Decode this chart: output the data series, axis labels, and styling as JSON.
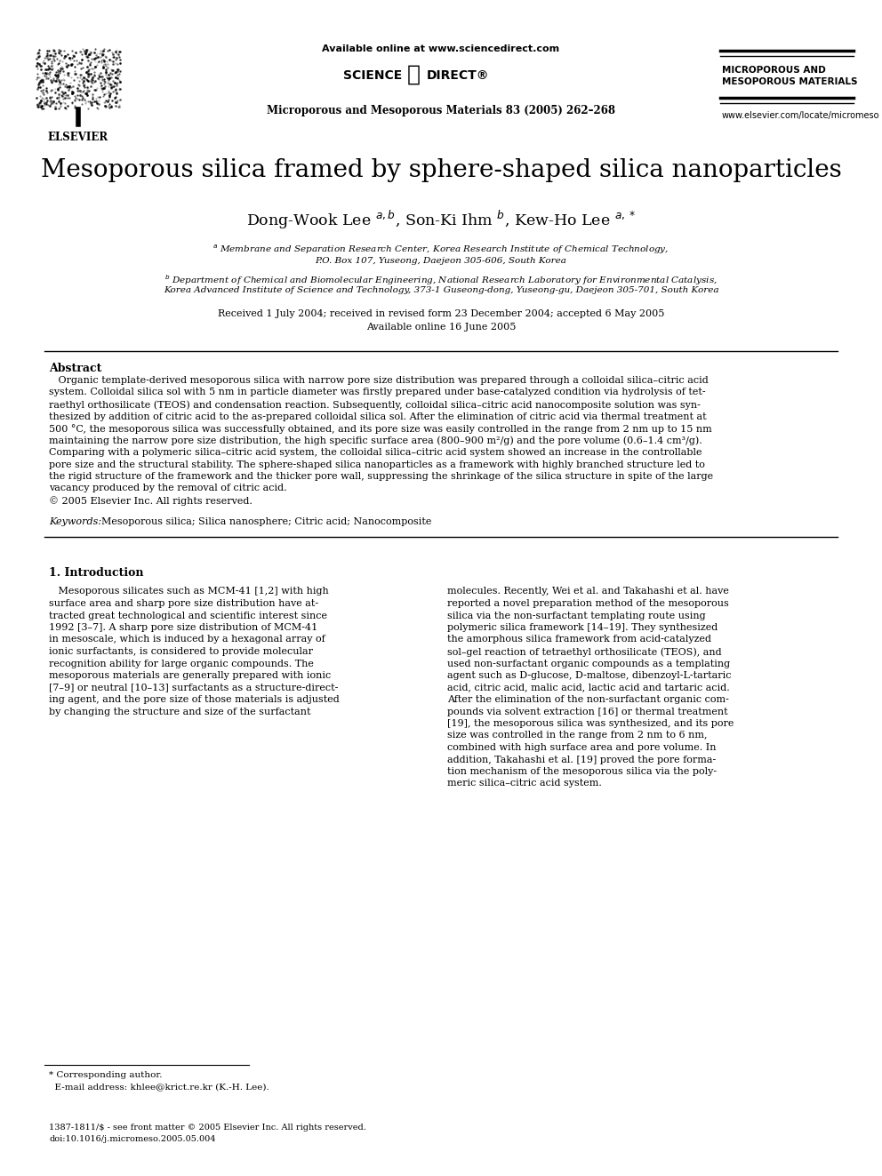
{
  "bg_color": "#ffffff",
  "page_width": 9.92,
  "page_height": 13.23,
  "header": {
    "available_online": "Available online at www.sciencedirect.com",
    "journal_name_center": "Microporous and Mesoporous Materials 83 (2005) 262–268",
    "journal_name_right_line1": "MICROPOROUS AND",
    "journal_name_right_line2": "MESOPOROUS MATERIALS",
    "website": "www.elsevier.com/locate/micromeso"
  },
  "title": "Mesoporous silica framed by sphere-shaped silica nanoparticles",
  "authors_display": "Dong-Wook Lee $^{a,b}$, Son-Ki Ihm $^{b}$, Kew-Ho Lee $^{a,*}$",
  "affil_a_line1": "$^{a}$ Membrane and Separation Research Center, Korea Research Institute of Chemical Technology,",
  "affil_a_line2": "P.O. Box 107, Yuseong, Daejeon 305-606, South Korea",
  "affil_b_line1": "$^{b}$ Department of Chemical and Biomolecular Engineering, National Research Laboratory for Environmental Catalysis,",
  "affil_b_line2": "Korea Advanced Institute of Science and Technology, 373-1 Guseong-dong, Yuseong-gu, Daejeon 305-701, South Korea",
  "received_line1": "Received 1 July 2004; received in revised form 23 December 2004; accepted 6 May 2005",
  "received_line2": "Available online 16 June 2005",
  "abstract_heading": "Abstract",
  "abstract_line1": "   Organic template-derived mesoporous silica with narrow pore size distribution was prepared through a colloidal silica–citric acid",
  "abstract_line2": "system. Colloidal silica sol with 5 nm in particle diameter was firstly prepared under base-catalyzed condition via hydrolysis of tet-",
  "abstract_line3": "raethyl orthosilicate (TEOS) and condensation reaction. Subsequently, colloidal silica–citric acid nanocomposite solution was syn-",
  "abstract_line4": "thesized by addition of citric acid to the as-prepared colloidal silica sol. After the elimination of citric acid via thermal treatment at",
  "abstract_line5": "500 °C, the mesoporous silica was successfully obtained, and its pore size was easily controlled in the range from 2 nm up to 15 nm",
  "abstract_line6": "maintaining the narrow pore size distribution, the high specific surface area (800–900 m²/g) and the pore volume (0.6–1.4 cm³/g).",
  "abstract_line7": "Comparing with a polymeric silica–citric acid system, the colloidal silica–citric acid system showed an increase in the controllable",
  "abstract_line8": "pore size and the structural stability. The sphere-shaped silica nanoparticles as a framework with highly branched structure led to",
  "abstract_line9": "the rigid structure of the framework and the thicker pore wall, suppressing the shrinkage of the silica structure in spite of the large",
  "abstract_line10": "vacancy produced by the removal of citric acid.",
  "abstract_line11": "© 2005 Elsevier Inc. All rights reserved.",
  "keywords_label": "Keywords:",
  "keywords_text": "  Mesoporous silica; Silica nanosphere; Citric acid; Nanocomposite",
  "section1_heading": "1. Introduction",
  "col1_lines": [
    "   Mesoporous silicates such as MCM-41 [1,2] with high",
    "surface area and sharp pore size distribution have at-",
    "tracted great technological and scientific interest since",
    "1992 [3–7]. A sharp pore size distribution of MCM-41",
    "in mesoscale, which is induced by a hexagonal array of",
    "ionic surfactants, is considered to provide molecular",
    "recognition ability for large organic compounds. The",
    "mesoporous materials are generally prepared with ionic",
    "[7–9] or neutral [10–13] surfactants as a structure-direct-",
    "ing agent, and the pore size of those materials is adjusted",
    "by changing the structure and size of the surfactant"
  ],
  "col2_lines": [
    "molecules. Recently, Wei et al. and Takahashi et al. have",
    "reported a novel preparation method of the mesoporous",
    "silica via the non-surfactant templating route using",
    "polymeric silica framework [14–19]. They synthesized",
    "the amorphous silica framework from acid-catalyzed",
    "sol–gel reaction of tetraethyl orthosilicate (TEOS), and",
    "used non-surfactant organic compounds as a templating",
    "agent such as D-glucose, D-maltose, dibenzoyl-L-tartaric",
    "acid, citric acid, malic acid, lactic acid and tartaric acid.",
    "After the elimination of the non-surfactant organic com-",
    "pounds via solvent extraction [16] or thermal treatment",
    "[19], the mesoporous silica was synthesized, and its pore",
    "size was controlled in the range from 2 nm to 6 nm,",
    "combined with high surface area and pore volume. In",
    "addition, Takahashi et al. [19] proved the pore forma-",
    "tion mechanism of the mesoporous silica via the poly-",
    "meric silica–citric acid system."
  ],
  "footer_corr": "* Corresponding author.",
  "footer_email": "  E-mail address: khlee@krict.re.kr (K.-H. Lee).",
  "footer_issn": "1387-1811/$ - see front matter © 2005 Elsevier Inc. All rights reserved.",
  "footer_doi": "doi:10.1016/j.micromeso.2005.05.004"
}
